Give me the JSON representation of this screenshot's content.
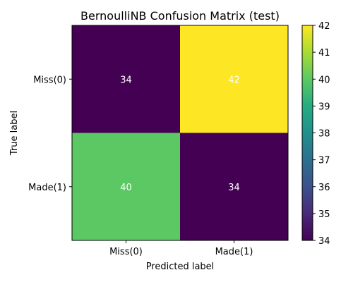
{
  "chart_data": {
    "type": "heatmap",
    "title": "BernoulliNB Confusion Matrix (test)",
    "xlabel": "Predicted label",
    "ylabel": "True label",
    "x_categories": [
      "Miss(0)",
      "Made(1)"
    ],
    "y_categories": [
      "Miss(0)",
      "Made(1)"
    ],
    "values": [
      [
        34,
        42
      ],
      [
        40,
        34
      ]
    ],
    "colorbar": {
      "min": 34,
      "max": 42,
      "ticks": [
        34,
        35,
        36,
        37,
        38,
        39,
        40,
        41,
        42
      ],
      "colormap": "viridis"
    },
    "cell_text_color": "#ffffff",
    "grid": false
  }
}
